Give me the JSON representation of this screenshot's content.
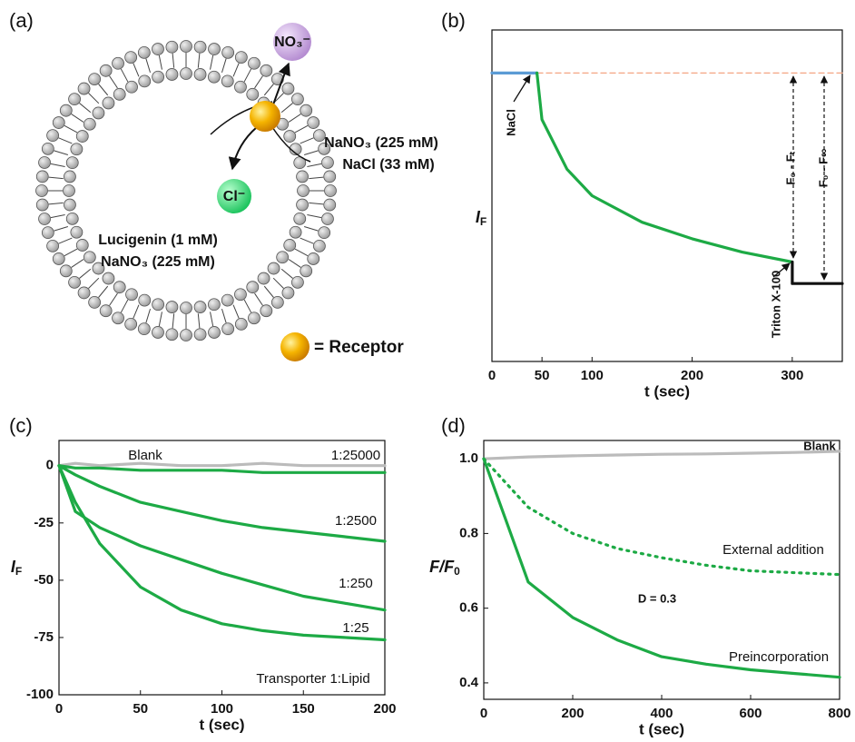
{
  "diagram": {
    "label": "(a)",
    "anion_out": "NO₃⁻",
    "anion_in": "Cl⁻",
    "outside": [
      "NaNO₃ (225 mM)",
      "NaCl (33 mM)"
    ],
    "inside": [
      "Lucigenin (1 mM)",
      "NaNO₃ (225 mM)"
    ],
    "legend": "= Receptor"
  },
  "chart_data": [
    {
      "type": "line",
      "label": "(b)",
      "xlabel": "t (sec)",
      "ylabel": "I",
      "ylabel_sub": "F",
      "xlim": [
        0,
        350
      ],
      "ylim": [
        0,
        100
      ],
      "xticks": [
        0,
        50,
        100,
        200,
        300
      ],
      "series": [
        {
          "color": "#f4a582",
          "style": "dashed",
          "x": [
            0,
            350
          ],
          "values": [
            87,
            87
          ]
        },
        {
          "color": "#5b9bd5",
          "style": "solid",
          "x": [
            0,
            45
          ],
          "values": [
            87,
            87
          ]
        },
        {
          "color": "#1daa45",
          "style": "solid",
          "x": [
            45,
            50,
            75,
            100,
            150,
            200,
            250,
            300
          ],
          "values": [
            87,
            73,
            58,
            50,
            42,
            37,
            33,
            30
          ]
        },
        {
          "color": "#111111",
          "style": "solid",
          "x": [
            300,
            300,
            350
          ],
          "values": [
            30,
            23.5,
            23.5
          ]
        }
      ],
      "annotations": [
        {
          "text": "NaCl",
          "color": "#e0a020"
        },
        {
          "text": "Triton X-100",
          "color": "#e8202a"
        },
        {
          "text": "F₀ - Fₜ",
          "color": "#9b3fc0"
        },
        {
          "text": "F₀ - F∞",
          "color": "#9b3fc0"
        }
      ]
    },
    {
      "type": "line",
      "label": "(c)",
      "xlabel": "t (sec)",
      "ylabel": "I",
      "ylabel_sub": "F",
      "xlim": [
        0,
        200
      ],
      "ylim": [
        -100,
        11
      ],
      "xticks": [
        0,
        50,
        100,
        150,
        200
      ],
      "yticks": [
        0,
        -25,
        -50,
        -75,
        -100
      ],
      "x": [
        0,
        10,
        25,
        50,
        75,
        100,
        125,
        150,
        175,
        200
      ],
      "series": [
        {
          "color": "#bbbbbb",
          "style": "solid",
          "values": [
            0,
            1,
            0,
            1,
            0,
            0,
            1,
            0,
            0,
            0
          ]
        },
        {
          "color": "#1daa45",
          "style": "solid",
          "values": [
            0,
            -1,
            -1,
            -2,
            -2,
            -2,
            -3,
            -3,
            -3,
            -3
          ]
        },
        {
          "color": "#1daa45",
          "style": "solid",
          "values": [
            0,
            -4,
            -9,
            -16,
            -20,
            -24,
            -27,
            -29,
            -31,
            -33
          ]
        },
        {
          "color": "#1daa45",
          "style": "solid",
          "values": [
            0,
            -20,
            -27,
            -35,
            -41,
            -47,
            -52,
            -57,
            -60,
            -63
          ]
        },
        {
          "color": "#1daa45",
          "style": "solid",
          "values": [
            0,
            -16,
            -34,
            -53,
            -63,
            -69,
            -72,
            -74,
            -75,
            -76
          ]
        }
      ],
      "annotations": [
        {
          "text": "Blank",
          "color": "#111111"
        },
        {
          "text": "1:25000",
          "color": "#111111"
        },
        {
          "text": "1:2500",
          "color": "#111111"
        },
        {
          "text": "1:250",
          "color": "#111111"
        },
        {
          "text": "1:25",
          "color": "#111111"
        },
        {
          "text": "Transporter 1:Lipid",
          "color": "#111111"
        }
      ]
    },
    {
      "type": "line",
      "label": "(d)",
      "xlabel": "t (sec)",
      "ylabel": "F/F",
      "ylabel_sub": "0",
      "xlim": [
        0,
        800
      ],
      "ylim": [
        0.356,
        1.049
      ],
      "xticks": [
        0,
        200,
        400,
        600,
        800
      ],
      "yticks": [
        0.4,
        0.6,
        0.8,
        {
          "value": 1,
          "label": "1.0"
        }
      ],
      "x": [
        0,
        100,
        200,
        300,
        400,
        500,
        600,
        700,
        800
      ],
      "series": [
        {
          "color": "#bbbbbb",
          "style": "solid",
          "values": [
            1.0,
            1.005,
            1.008,
            1.01,
            1.012,
            1.013,
            1.015,
            1.017,
            1.02
          ]
        },
        {
          "color": "#1daa45",
          "style": "dotted",
          "values": [
            1.0,
            0.87,
            0.8,
            0.76,
            0.735,
            0.715,
            0.7,
            0.695,
            0.69
          ]
        },
        {
          "color": "#1daa45",
          "style": "solid",
          "values": [
            1.0,
            0.67,
            0.575,
            0.515,
            0.47,
            0.45,
            0.435,
            0.425,
            0.415
          ]
        }
      ],
      "annotations": [
        {
          "text": "Blank",
          "color": "#333333"
        },
        {
          "text": "External addition",
          "color": "#111111"
        },
        {
          "text": "D = 0.3",
          "color": "#f07d1a"
        },
        {
          "text": "Preincorporation",
          "color": "#111111"
        }
      ]
    }
  ]
}
